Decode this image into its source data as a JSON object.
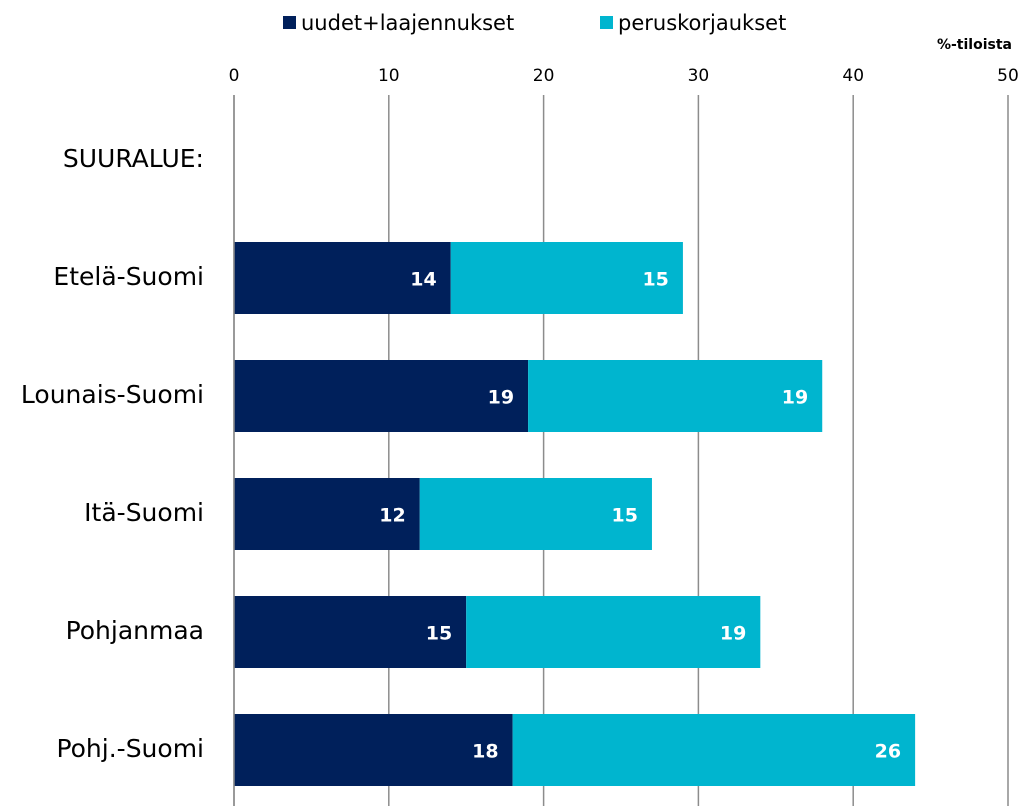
{
  "chart_data": {
    "type": "bar",
    "orientation": "horizontal",
    "stacked": true,
    "x_label": "%-tiloista",
    "categories": [
      "SUURALUE:",
      "Etelä-Suomi",
      "Lounais-Suomi",
      "Itä-Suomi",
      "Pohjanmaa",
      "Pohj.-Suomi"
    ],
    "series": [
      {
        "name": "uudet+laajennukset",
        "color": "#00205b",
        "values": [
          null,
          14,
          19,
          12,
          15,
          18
        ]
      },
      {
        "name": "peruskorjaukset",
        "color": "#00b5cf",
        "values": [
          null,
          15,
          19,
          15,
          19,
          26
        ]
      }
    ],
    "xlim": [
      0,
      50
    ],
    "xticks": [
      0,
      10,
      20,
      30,
      40,
      50
    ],
    "grid": true,
    "legend": "top"
  }
}
